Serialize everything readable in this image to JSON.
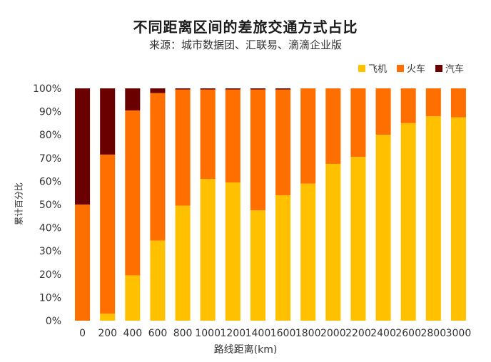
{
  "header": {
    "title": "不同距离区间的差旅交通方式占比",
    "subtitle": "来源：城市数据团、汇联易、滴滴企业版"
  },
  "chart_data": {
    "type": "stacked-bar",
    "title": "不同距离区间的差旅交通方式占比",
    "subtitle": "来源：城市数据团、汇联易、滴滴企业版",
    "xlabel": "路线距离(km)",
    "ylabel": "累计百分比",
    "ylim": [
      0,
      100
    ],
    "yticks": [
      0,
      10,
      20,
      30,
      40,
      50,
      60,
      70,
      80,
      90,
      100
    ],
    "ytick_labels": [
      "0%",
      "10%",
      "20%",
      "30%",
      "40%",
      "50%",
      "60%",
      "70%",
      "80%",
      "90%",
      "100%"
    ],
    "categories": [
      "0",
      "200",
      "400",
      "600",
      "800",
      "1000",
      "1200",
      "1400",
      "1600",
      "1800",
      "2000",
      "2200",
      "2400",
      "2600",
      "2800",
      "3000"
    ],
    "legend_position": "top-right",
    "series": [
      {
        "name": "飞机",
        "color": "#ffc000",
        "values": [
          0,
          3,
          19.5,
          34.5,
          49.5,
          61,
          59.5,
          47.5,
          54,
          59,
          67.5,
          70.5,
          80,
          85,
          88,
          87.5
        ]
      },
      {
        "name": "火车",
        "color": "#ff6f00",
        "values": [
          50,
          68.5,
          71,
          63.5,
          50,
          38.5,
          40,
          52,
          45.5,
          41,
          32.5,
          29.5,
          20,
          15,
          12,
          12.5
        ]
      },
      {
        "name": "汽车",
        "color": "#6b0000",
        "values": [
          50,
          28.5,
          9.5,
          2,
          0.5,
          0.5,
          0.5,
          0.5,
          0.5,
          0,
          0,
          0,
          0,
          0,
          0,
          0
        ]
      }
    ]
  }
}
